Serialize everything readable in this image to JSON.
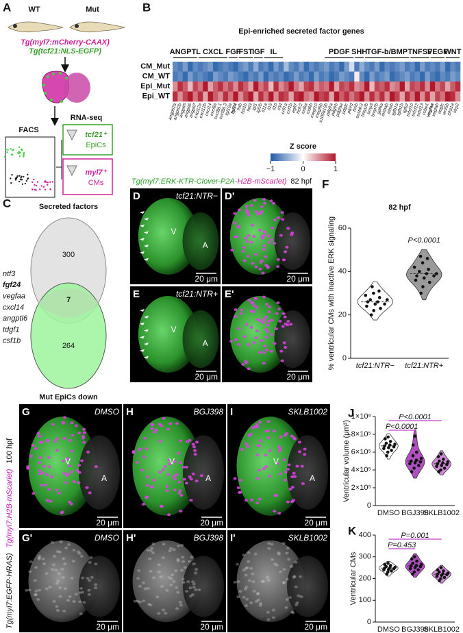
{
  "panel_a": {
    "label": "A",
    "wt": "WT",
    "mut": "Mut",
    "transgene_1": "Tg(myl7:mCherry-CAAX)",
    "transgene_2": "Tg(tcf21:NLS-EGFP)",
    "facs": "FACS",
    "rna_seq": "RNA-seq",
    "sample_1_gene": "tcf21⁺",
    "sample_1_cells": "EpiCs",
    "sample_2_gene": "myl7⁺",
    "sample_2_cells": "CMs"
  },
  "panel_c": {
    "label": "C",
    "top_set": "Secreted factors",
    "bottom_set": "Mut EpiCs down",
    "top_only": 300,
    "overlap": 7,
    "bottom_only": 264,
    "genes": [
      "ntf3",
      "fgf24",
      "vegfaa",
      "cxcl14",
      "angptl6",
      "tdgf1",
      "csf1b"
    ]
  },
  "panel_d_e": {
    "header_green": "Tg(myl7:ERK-KTR-Clover-P2A-",
    "header_magenta": "H2B-mScarlet)",
    "stage": "82 hpf",
    "label_d": "D",
    "label_d_prime": "D'",
    "label_e": "E",
    "label_e_prime": "E'",
    "condition_d": "tcf21:NTR−",
    "condition_e": "tcf21:NTR+",
    "ventricle": "V",
    "atrium": "A",
    "scale": "20 μm"
  },
  "panel_g_i": {
    "labels": [
      "G",
      "H",
      "I"
    ],
    "labels_prime": [
      "G'",
      "H'",
      "I'"
    ],
    "treatments": [
      "DMSO",
      "BGJ398",
      "SKLB1002"
    ],
    "side_label_1": "Tg(myl7:EGFP-HRAS)",
    "side_label_2": "Tg(myl7:H2B-mScarlet)",
    "stage": "100 hpf",
    "ventricle": "V",
    "atrium": "A",
    "scale": "20 μm"
  },
  "chart_data": [
    {
      "type": "heatmap",
      "panel_label": "B",
      "title": "Epi-enriched secreted factor genes",
      "rows": [
        "CM_Mut",
        "CM_WT",
        "Epi_Mut",
        "Epi_WT"
      ],
      "columns": [
        "angptl2a",
        "angptl2b",
        "angptl5",
        "angptl6",
        "angptl7",
        "cxcl12a",
        "cxcl12b",
        "cxcl14",
        "cxcl8a",
        "cxcl8b.1",
        "cxcl8b.3",
        "fgf10a",
        "fgf24",
        "fstb",
        "fstl1b",
        "fstl3",
        "igf1",
        "igf2b",
        "il11a",
        "il15",
        "il16",
        "il34",
        "crfl1a",
        "csf1b",
        "egfl7",
        "hcfc2",
        "mdka",
        "mdkb",
        "megf10",
        "megf6b",
        "s100a10b",
        "pdgfra",
        "pdgfrb",
        "pdgfaa",
        "pdgfc",
        "ptprd",
        "fshb",
        "sostdc2",
        "bmp2b",
        "bmp3",
        "bmp7b",
        "gdf6a",
        "inhbab",
        "inhbb",
        "tgfb1a",
        "tgfb1b",
        "tgfb2",
        "tnfsf10",
        "tnfsf12",
        "tnfsf13",
        "ccbe1",
        "vegfaa",
        "vegfab",
        "vegfc",
        "wnt5b",
        "sfrp1a",
        "sfrp2"
      ],
      "groups": [
        {
          "name": "ANGPTL",
          "span": [
            0,
            4
          ]
        },
        {
          "name": "CXCL",
          "span": [
            5,
            10
          ]
        },
        {
          "name": "FGF",
          "span": [
            11,
            12
          ]
        },
        {
          "name": "FST",
          "span": [
            13,
            15
          ]
        },
        {
          "name": "IGF",
          "span": [
            16,
            17
          ]
        },
        {
          "name": "IL",
          "span": [
            18,
            21
          ]
        },
        {
          "name": "PDGF",
          "span": [
            30,
            35
          ]
        },
        {
          "name": "SHH",
          "span": [
            36,
            37
          ]
        },
        {
          "name": "TGF-b/BMP",
          "span": [
            38,
            46
          ]
        },
        {
          "name": "TNFSF",
          "span": [
            47,
            50
          ]
        },
        {
          "name": "VEGF",
          "span": [
            51,
            53
          ]
        },
        {
          "name": "WNT",
          "span": [
            54,
            56
          ]
        }
      ],
      "values": [
        [
          -0.7,
          -0.8,
          -0.6,
          -0.9,
          -0.7,
          -0.8,
          -0.7,
          -0.6,
          -0.9,
          -0.8,
          -0.7,
          -0.8,
          -0.9,
          -0.7,
          -0.6,
          -0.8,
          -0.5,
          -0.8,
          -0.7,
          -0.9,
          -0.6,
          -0.8,
          -0.4,
          -0.7,
          -0.8,
          -0.6,
          -0.9,
          -0.7,
          -0.8,
          -0.7,
          -0.6,
          -0.8,
          -0.7,
          -0.9,
          -0.6,
          -0.2,
          -0.8,
          -0.5,
          -0.7,
          -0.8,
          -0.6,
          -0.9,
          -0.7,
          -0.8,
          -0.7,
          -0.6,
          -0.8,
          -0.7,
          -0.9,
          -0.6,
          -0.8,
          -0.7,
          -0.8,
          -0.6,
          -0.9,
          -0.7,
          -0.8
        ],
        [
          -0.8,
          -0.7,
          -0.9,
          -0.6,
          -0.8,
          -0.7,
          -0.8,
          -0.9,
          -0.6,
          -0.7,
          -0.8,
          -0.6,
          -0.7,
          -0.8,
          -0.9,
          -0.7,
          -0.8,
          -0.6,
          -0.9,
          -0.7,
          -0.8,
          -0.7,
          -0.9,
          -0.8,
          -0.6,
          -0.8,
          -0.7,
          -0.9,
          -0.6,
          -0.8,
          -0.7,
          -0.9,
          -0.8,
          -0.6,
          -0.7,
          -0.8,
          0.1,
          -0.7,
          -0.9,
          -0.6,
          -0.8,
          -0.7,
          -0.6,
          -0.9,
          -0.8,
          -0.7,
          -0.6,
          -0.8,
          -0.7,
          -0.9,
          -0.6,
          -0.8,
          -0.9,
          -0.7,
          -0.8,
          -0.6,
          -0.7
        ],
        [
          0.5,
          0.9,
          0.7,
          0.3,
          0.8,
          0.6,
          1.0,
          0.4,
          0.7,
          0.9,
          0.6,
          0.8,
          0.5,
          0.9,
          0.7,
          0.4,
          1.0,
          0.6,
          0.8,
          0.3,
          0.9,
          0.5,
          0.7,
          1.0,
          0.6,
          0.4,
          0.8,
          0.9,
          0.5,
          0.7,
          0.6,
          1.0,
          0.4,
          0.8,
          0.7,
          0.9,
          0.5,
          0.6,
          1.0,
          0.3,
          0.8,
          0.7,
          0.9,
          0.5,
          0.6,
          1.0,
          0.4,
          0.8,
          0.7,
          0.9,
          0.5,
          1.0,
          0.6,
          0.8,
          0.4,
          0.7,
          0.9
        ],
        [
          0.9,
          0.5,
          0.8,
          1.0,
          0.6,
          0.9,
          0.4,
          1.0,
          0.7,
          0.5,
          0.9,
          0.6,
          1.0,
          0.5,
          0.8,
          1.0,
          0.4,
          0.9,
          0.6,
          1.0,
          0.5,
          0.9,
          0.8,
          0.4,
          0.9,
          1.0,
          0.6,
          0.5,
          1.0,
          0.8,
          0.9,
          0.4,
          1.0,
          0.7,
          0.9,
          0.6,
          0.8,
          1.0,
          0.5,
          0.9,
          0.6,
          0.9,
          0.5,
          1.0,
          0.8,
          0.4,
          0.9,
          0.6,
          1.0,
          0.5,
          0.9,
          0.4,
          0.8,
          0.6,
          1.0,
          0.9,
          0.5
        ]
      ],
      "colors": [
        "#1f5aa6",
        "#ffffff",
        "#b2182b"
      ],
      "colorbar": {
        "title": "Z score",
        "range": [
          -1,
          1
        ],
        "ticks": [
          {
            "value": -1,
            "label": "−1"
          },
          0,
          1
        ]
      }
    },
    {
      "type": "violin",
      "panel_label": "F",
      "title": "82 hpf",
      "ylabel": "% ventricular CMs with inactive ERK signaling",
      "categories": [
        "tcf21:NTR−",
        "tcf21:NTR+"
      ],
      "colors": [
        "#ffffff",
        "#9a9a9a"
      ],
      "values": [
        [
          20,
          22,
          23,
          24,
          25,
          25,
          26,
          26,
          27,
          27,
          28,
          29,
          30,
          31,
          33
        ],
        [
          30,
          33,
          35,
          36,
          37,
          38,
          38,
          39,
          39,
          40,
          41,
          42,
          44,
          46,
          47
        ]
      ],
      "ylim": [
        0,
        60
      ],
      "yticks": [
        0,
        20,
        40,
        60
      ],
      "annotations": [
        {
          "text": "P<0.0001",
          "category": 1
        }
      ]
    },
    {
      "type": "violin",
      "panel_label": "J",
      "ylabel": "Ventricular volume (μm³)",
      "categories": [
        "DMSO",
        "BGJ398",
        "SKLB1002"
      ],
      "colors": [
        "#ffffff",
        "#b04fbf",
        "#d08ad8"
      ],
      "values": [
        [
          560000,
          600000,
          620000,
          640000,
          650000,
          660000,
          670000,
          680000,
          690000,
          700000,
          720000,
          750000,
          770000
        ],
        [
          380000,
          420000,
          450000,
          470000,
          480000,
          490000,
          500000,
          510000,
          530000,
          560000,
          600000,
          680000,
          780000
        ],
        [
          380000,
          400000,
          420000,
          440000,
          450000,
          460000,
          470000,
          480000,
          490000,
          500000,
          520000,
          550000,
          580000
        ]
      ],
      "ylim": [
        0,
        1000000
      ],
      "yticks": [
        0,
        {
          "value": 200000,
          "label": "2×10⁵"
        },
        {
          "value": 400000,
          "label": "4×10⁵"
        },
        {
          "value": 600000,
          "label": "6×10⁵"
        },
        {
          "value": 800000,
          "label": "8×10⁵"
        },
        {
          "value": 1000000,
          "label": "1×10⁶"
        }
      ],
      "annotations": [
        {
          "text": "P<0.0001",
          "from": 0,
          "to": 2
        },
        {
          "text": "P<0.0001",
          "from": 0,
          "to": 1
        }
      ],
      "annotation_color": "#c03cc8"
    },
    {
      "type": "violin",
      "panel_label": "K",
      "ylabel": "Ventricular CMs",
      "categories": [
        "DMSO",
        "BGJ398",
        "SKLB1002"
      ],
      "colors": [
        "#ffffff",
        "#b04fbf",
        "#d08ad8"
      ],
      "values": [
        [
          220,
          230,
          235,
          240,
          242,
          245,
          248,
          250,
          252,
          255,
          260,
          265,
          270
        ],
        [
          220,
          230,
          240,
          245,
          250,
          255,
          258,
          260,
          265,
          270,
          280,
          290,
          300
        ],
        [
          190,
          200,
          205,
          210,
          215,
          218,
          220,
          222,
          225,
          230,
          235,
          240,
          250
        ]
      ],
      "ylim": [
        0,
        400
      ],
      "yticks": [
        0,
        100,
        200,
        300,
        400
      ],
      "annotations": [
        {
          "text": "P=0.001",
          "from": 0,
          "to": 2
        },
        {
          "text": "P=0.453",
          "from": 0,
          "to": 1
        }
      ],
      "annotation_color": "#c03cc8"
    }
  ]
}
